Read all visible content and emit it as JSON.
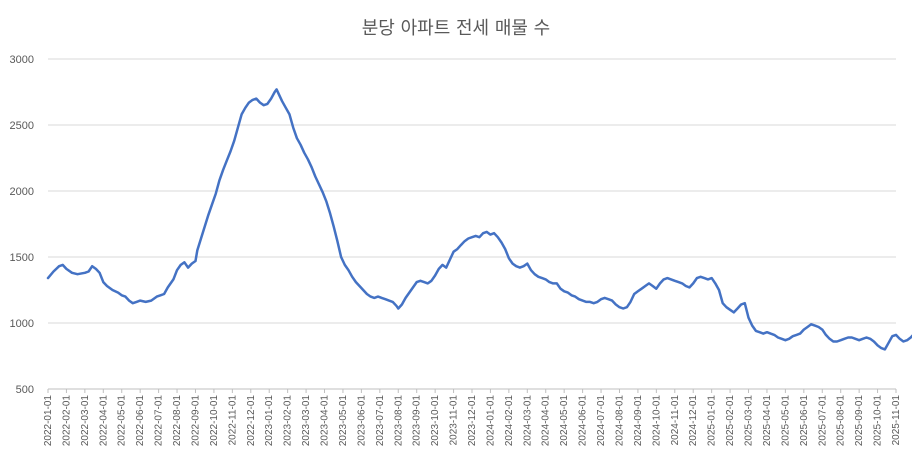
{
  "chart_data": {
    "type": "line",
    "title": "분당 아파트 전세 매물 수",
    "xlabel": "",
    "ylabel": "",
    "ylim": [
      500,
      3000
    ],
    "yticks": [
      500,
      1000,
      1500,
      2000,
      2500,
      3000
    ],
    "grid": true,
    "legend": "none",
    "line_color": "#4472C4",
    "xtick_labels": [
      "2022-01-01",
      "2022-02-01",
      "2022-03-01",
      "2022-04-01",
      "2022-05-01",
      "2022-06-01",
      "2022-07-01",
      "2022-08-01",
      "2022-09-01",
      "2022-10-01",
      "2022-11-01",
      "2022-12-01",
      "2023-01-01",
      "2023-02-01",
      "2023-03-01",
      "2023-04-01",
      "2023-05-01",
      "2023-06-01",
      "2023-07-01",
      "2023-08-01",
      "2023-09-01",
      "2023-10-01",
      "2023-11-01",
      "2023-12-01",
      "2024-01-01",
      "2024-02-01",
      "2024-03-01",
      "2024-04-01",
      "2024-05-01",
      "2024-06-01",
      "2024-07-01",
      "2024-08-01",
      "2024-09-01",
      "2024-10-01",
      "2024-11-01",
      "2024-12-01",
      "2025-01-01",
      "2025-02-01",
      "2025-03-01",
      "2025-04-01",
      "2025-05-01",
      "2025-06-01",
      "2025-07-01",
      "2025-08-01",
      "2025-09-01",
      "2025-10-01",
      "2025-11-01"
    ],
    "series": [
      {
        "values": [
          [
            0.0,
            1340
          ],
          [
            0.3,
            1390
          ],
          [
            0.6,
            1430
          ],
          [
            0.8,
            1440
          ],
          [
            1.0,
            1410
          ],
          [
            1.3,
            1380
          ],
          [
            1.6,
            1370
          ],
          [
            2.0,
            1380
          ],
          [
            2.2,
            1390
          ],
          [
            2.4,
            1430
          ],
          [
            2.6,
            1410
          ],
          [
            2.8,
            1380
          ],
          [
            3.0,
            1310
          ],
          [
            3.2,
            1280
          ],
          [
            3.5,
            1250
          ],
          [
            3.8,
            1230
          ],
          [
            4.0,
            1210
          ],
          [
            4.2,
            1200
          ],
          [
            4.4,
            1170
          ],
          [
            4.6,
            1150
          ],
          [
            4.8,
            1160
          ],
          [
            5.0,
            1170
          ],
          [
            5.3,
            1160
          ],
          [
            5.6,
            1170
          ],
          [
            5.9,
            1200
          ],
          [
            6.1,
            1210
          ],
          [
            6.3,
            1220
          ],
          [
            6.5,
            1270
          ],
          [
            6.8,
            1330
          ],
          [
            7.0,
            1400
          ],
          [
            7.2,
            1440
          ],
          [
            7.4,
            1460
          ],
          [
            7.6,
            1420
          ],
          [
            7.8,
            1450
          ],
          [
            8.0,
            1470
          ],
          [
            8.1,
            1550
          ],
          [
            8.3,
            1640
          ],
          [
            8.5,
            1730
          ],
          [
            8.7,
            1820
          ],
          [
            8.9,
            1900
          ],
          [
            9.1,
            1980
          ],
          [
            9.3,
            2080
          ],
          [
            9.5,
            2160
          ],
          [
            9.7,
            2230
          ],
          [
            9.9,
            2300
          ],
          [
            10.1,
            2380
          ],
          [
            10.3,
            2480
          ],
          [
            10.5,
            2580
          ],
          [
            10.7,
            2630
          ],
          [
            10.9,
            2670
          ],
          [
            11.1,
            2690
          ],
          [
            11.3,
            2700
          ],
          [
            11.5,
            2670
          ],
          [
            11.7,
            2650
          ],
          [
            11.9,
            2660
          ],
          [
            12.1,
            2700
          ],
          [
            12.3,
            2750
          ],
          [
            12.4,
            2770
          ],
          [
            12.5,
            2740
          ],
          [
            12.7,
            2680
          ],
          [
            12.9,
            2630
          ],
          [
            13.1,
            2580
          ],
          [
            13.3,
            2480
          ],
          [
            13.5,
            2400
          ],
          [
            13.7,
            2350
          ],
          [
            13.9,
            2290
          ],
          [
            14.1,
            2240
          ],
          [
            14.3,
            2180
          ],
          [
            14.5,
            2110
          ],
          [
            14.7,
            2050
          ],
          [
            14.9,
            1990
          ],
          [
            15.1,
            1920
          ],
          [
            15.3,
            1830
          ],
          [
            15.5,
            1730
          ],
          [
            15.7,
            1620
          ],
          [
            15.9,
            1500
          ],
          [
            16.1,
            1440
          ],
          [
            16.3,
            1400
          ],
          [
            16.5,
            1350
          ],
          [
            16.7,
            1310
          ],
          [
            16.9,
            1280
          ],
          [
            17.1,
            1250
          ],
          [
            17.3,
            1220
          ],
          [
            17.5,
            1200
          ],
          [
            17.7,
            1190
          ],
          [
            17.9,
            1200
          ],
          [
            18.1,
            1190
          ],
          [
            18.3,
            1180
          ],
          [
            18.5,
            1170
          ],
          [
            18.7,
            1160
          ],
          [
            18.9,
            1130
          ],
          [
            19.0,
            1110
          ],
          [
            19.2,
            1140
          ],
          [
            19.4,
            1190
          ],
          [
            19.6,
            1230
          ],
          [
            19.8,
            1270
          ],
          [
            20.0,
            1310
          ],
          [
            20.2,
            1320
          ],
          [
            20.4,
            1310
          ],
          [
            20.6,
            1300
          ],
          [
            20.8,
            1320
          ],
          [
            21.0,
            1360
          ],
          [
            21.2,
            1410
          ],
          [
            21.4,
            1440
          ],
          [
            21.6,
            1420
          ],
          [
            21.8,
            1480
          ],
          [
            22.0,
            1540
          ],
          [
            22.2,
            1560
          ],
          [
            22.4,
            1590
          ],
          [
            22.6,
            1620
          ],
          [
            22.8,
            1640
          ],
          [
            23.0,
            1650
          ],
          [
            23.2,
            1660
          ],
          [
            23.4,
            1650
          ],
          [
            23.6,
            1680
          ],
          [
            23.8,
            1690
          ],
          [
            24.0,
            1670
          ],
          [
            24.2,
            1680
          ],
          [
            24.4,
            1650
          ],
          [
            24.6,
            1610
          ],
          [
            24.8,
            1560
          ],
          [
            25.0,
            1490
          ],
          [
            25.2,
            1450
          ],
          [
            25.4,
            1430
          ],
          [
            25.6,
            1420
          ],
          [
            25.8,
            1430
          ],
          [
            26.0,
            1450
          ],
          [
            26.2,
            1400
          ],
          [
            26.4,
            1370
          ],
          [
            26.6,
            1350
          ],
          [
            26.8,
            1340
          ],
          [
            27.0,
            1330
          ],
          [
            27.2,
            1310
          ],
          [
            27.4,
            1300
          ],
          [
            27.6,
            1300
          ],
          [
            27.8,
            1260
          ],
          [
            28.0,
            1240
          ],
          [
            28.2,
            1230
          ],
          [
            28.4,
            1210
          ],
          [
            28.6,
            1200
          ],
          [
            28.8,
            1180
          ],
          [
            29.0,
            1170
          ],
          [
            29.2,
            1160
          ],
          [
            29.4,
            1160
          ],
          [
            29.6,
            1150
          ],
          [
            29.8,
            1160
          ],
          [
            30.0,
            1180
          ],
          [
            30.2,
            1190
          ],
          [
            30.4,
            1180
          ],
          [
            30.6,
            1170
          ],
          [
            30.8,
            1140
          ],
          [
            31.0,
            1120
          ],
          [
            31.2,
            1110
          ],
          [
            31.4,
            1120
          ],
          [
            31.6,
            1160
          ],
          [
            31.8,
            1220
          ],
          [
            32.0,
            1240
          ],
          [
            32.2,
            1260
          ],
          [
            32.4,
            1280
          ],
          [
            32.6,
            1300
          ],
          [
            32.8,
            1280
          ],
          [
            33.0,
            1260
          ],
          [
            33.2,
            1300
          ],
          [
            33.4,
            1330
          ],
          [
            33.6,
            1340
          ],
          [
            33.8,
            1330
          ],
          [
            34.0,
            1320
          ],
          [
            34.2,
            1310
          ],
          [
            34.4,
            1300
          ],
          [
            34.6,
            1280
          ],
          [
            34.8,
            1270
          ],
          [
            35.0,
            1300
          ],
          [
            35.2,
            1340
          ],
          [
            35.4,
            1350
          ],
          [
            35.6,
            1340
          ],
          [
            35.8,
            1330
          ],
          [
            36.0,
            1340
          ],
          [
            36.2,
            1300
          ],
          [
            36.4,
            1250
          ],
          [
            36.6,
            1150
          ],
          [
            36.8,
            1120
          ],
          [
            37.0,
            1100
          ],
          [
            37.2,
            1080
          ],
          [
            37.4,
            1110
          ],
          [
            37.6,
            1140
          ],
          [
            37.8,
            1150
          ],
          [
            38.0,
            1040
          ],
          [
            38.2,
            980
          ],
          [
            38.4,
            940
          ],
          [
            38.6,
            930
          ],
          [
            38.8,
            920
          ],
          [
            39.0,
            930
          ],
          [
            39.2,
            920
          ],
          [
            39.4,
            910
          ],
          [
            39.6,
            890
          ],
          [
            39.8,
            880
          ],
          [
            40.0,
            870
          ],
          [
            40.2,
            880
          ],
          [
            40.4,
            900
          ],
          [
            40.6,
            910
          ],
          [
            40.8,
            920
          ],
          [
            41.0,
            950
          ],
          [
            41.2,
            970
          ],
          [
            41.4,
            990
          ],
          [
            41.6,
            980
          ],
          [
            41.8,
            970
          ],
          [
            42.0,
            950
          ],
          [
            42.2,
            910
          ],
          [
            42.4,
            880
          ],
          [
            42.6,
            860
          ],
          [
            42.8,
            860
          ],
          [
            43.0,
            870
          ],
          [
            43.2,
            880
          ],
          [
            43.4,
            890
          ],
          [
            43.6,
            890
          ],
          [
            43.8,
            880
          ],
          [
            44.0,
            870
          ],
          [
            44.2,
            880
          ],
          [
            44.4,
            890
          ],
          [
            44.6,
            880
          ],
          [
            44.8,
            860
          ],
          [
            45.0,
            830
          ],
          [
            45.2,
            810
          ],
          [
            45.4,
            800
          ],
          [
            45.6,
            850
          ],
          [
            45.8,
            900
          ],
          [
            46.0,
            910
          ],
          [
            46.2,
            880
          ],
          [
            46.4,
            860
          ],
          [
            46.6,
            870
          ],
          [
            46.8,
            890
          ],
          [
            46.9,
            905
          ]
        ]
      }
    ]
  }
}
